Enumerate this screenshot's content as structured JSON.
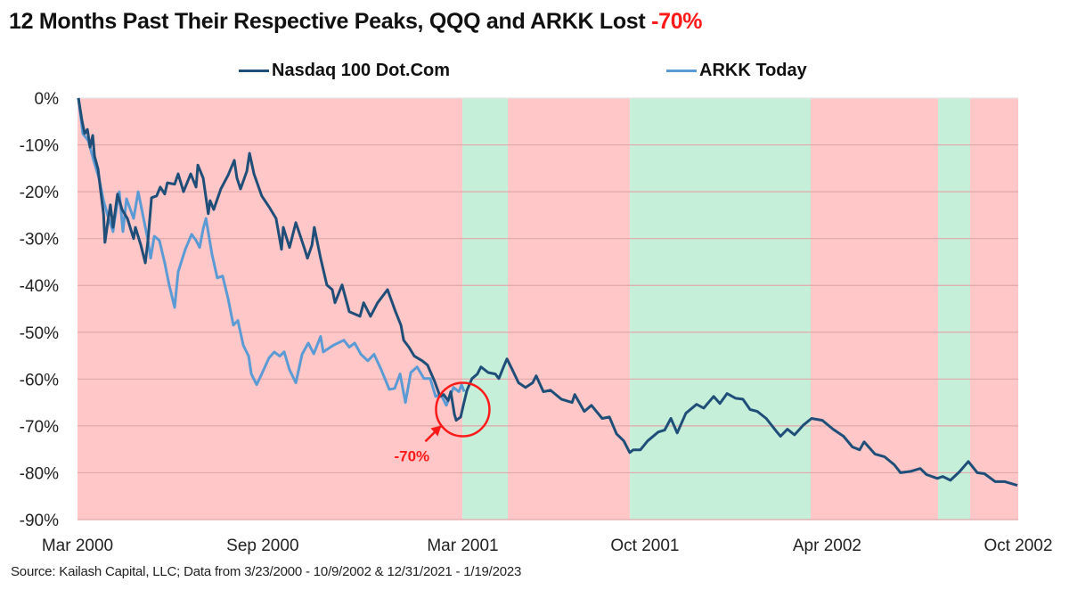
{
  "title": {
    "main": "12 Months Past Their Respective Peaks, QQQ and ARKK Lost ",
    "highlight": "-70%"
  },
  "source": "Source: Kailash Capital, LLC; Data from 3/23/2000 - 10/9/2002 & 12/31/2021 - 1/19/2023",
  "colors": {
    "nasdaq": "#1f4e79",
    "arkk": "#5b9bd5",
    "red_band": "#ffc7c7",
    "green_band": "#c6efda",
    "annotation": "#ff1a1a",
    "gridline": "#e0a8a8"
  },
  "chart_data": {
    "type": "line",
    "title": "12 Months Past Their Respective Peaks, QQQ and ARKK Lost -70%",
    "xlabel": "",
    "ylabel": "",
    "x_unit": "months since Mar 2000",
    "xlim": [
      0,
      31.5
    ],
    "ylim": [
      -90,
      0
    ],
    "grid": true,
    "legend_position": "top-center",
    "yticks": [
      0,
      -10,
      -20,
      -30,
      -40,
      -50,
      -60,
      -70,
      -80,
      -90
    ],
    "ytick_labels": [
      "0%",
      "-10%",
      "-20%",
      "-30%",
      "-40%",
      "-50%",
      "-60%",
      "-70%",
      "-80%",
      "-90%"
    ],
    "xticks": [
      {
        "x": 0,
        "label": "Mar 2000"
      },
      {
        "x": 6.2,
        "label": "Sep 2000"
      },
      {
        "x": 12.9,
        "label": "Mar 2001"
      },
      {
        "x": 19.0,
        "label": "Oct 2001"
      },
      {
        "x": 25.1,
        "label": "Apr 2002"
      },
      {
        "x": 31.5,
        "label": "Oct 2002"
      }
    ],
    "bands": [
      {
        "from": 0,
        "to": 12.89,
        "type": "red"
      },
      {
        "from": 12.89,
        "to": 14.41,
        "type": "green"
      },
      {
        "from": 14.41,
        "to": 18.5,
        "type": "red"
      },
      {
        "from": 18.5,
        "to": 24.55,
        "type": "green"
      },
      {
        "from": 24.55,
        "to": 28.82,
        "type": "red"
      },
      {
        "from": 28.82,
        "to": 29.89,
        "type": "green"
      },
      {
        "from": 29.89,
        "to": 31.5,
        "type": "red"
      }
    ],
    "annotation": {
      "label": "-70%",
      "x": 12.9,
      "y": -66.5,
      "label_x": 11.2,
      "label_y": -77.5
    },
    "series": [
      {
        "name": "Nasdaq 100 Dot.Com",
        "color_key": "nasdaq",
        "points": [
          [
            0.03,
            0
          ],
          [
            0.15,
            -4.8
          ],
          [
            0.24,
            -7.6
          ],
          [
            0.33,
            -6.7
          ],
          [
            0.42,
            -10.5
          ],
          [
            0.51,
            -8.0
          ],
          [
            0.57,
            -12.4
          ],
          [
            0.69,
            -15.2
          ],
          [
            0.78,
            -20.0
          ],
          [
            0.87,
            -24.7
          ],
          [
            0.92,
            -30.8
          ],
          [
            1.01,
            -26.6
          ],
          [
            1.1,
            -22.8
          ],
          [
            1.19,
            -27.6
          ],
          [
            1.34,
            -20.5
          ],
          [
            1.49,
            -23.8
          ],
          [
            1.67,
            -25.7
          ],
          [
            1.88,
            -30.0
          ],
          [
            1.94,
            -27.6
          ],
          [
            2.12,
            -31.4
          ],
          [
            2.27,
            -35.2
          ],
          [
            2.36,
            -30.4
          ],
          [
            2.48,
            -21.3
          ],
          [
            2.65,
            -20.9
          ],
          [
            2.77,
            -19.0
          ],
          [
            2.92,
            -20.5
          ],
          [
            3.01,
            -18.1
          ],
          [
            3.25,
            -18.4
          ],
          [
            3.37,
            -16.2
          ],
          [
            3.55,
            -20.0
          ],
          [
            3.79,
            -16.2
          ],
          [
            3.97,
            -19.0
          ],
          [
            4.03,
            -14.3
          ],
          [
            4.21,
            -17.1
          ],
          [
            4.38,
            -24.7
          ],
          [
            4.44,
            -21.9
          ],
          [
            4.56,
            -23.8
          ],
          [
            4.8,
            -19.4
          ],
          [
            5.04,
            -16.5
          ],
          [
            5.25,
            -13.3
          ],
          [
            5.34,
            -17.1
          ],
          [
            5.46,
            -19.4
          ],
          [
            5.67,
            -15.6
          ],
          [
            5.76,
            -11.8
          ],
          [
            5.91,
            -16.2
          ],
          [
            6.17,
            -20.9
          ],
          [
            6.41,
            -23.2
          ],
          [
            6.65,
            -25.7
          ],
          [
            6.83,
            -32.3
          ],
          [
            6.89,
            -27.6
          ],
          [
            7.1,
            -31.9
          ],
          [
            7.31,
            -26.6
          ],
          [
            7.61,
            -32.3
          ],
          [
            7.7,
            -34.2
          ],
          [
            7.85,
            -31.4
          ],
          [
            7.93,
            -27.6
          ],
          [
            8.14,
            -34.2
          ],
          [
            8.35,
            -39.9
          ],
          [
            8.53,
            -40.9
          ],
          [
            8.62,
            -43.7
          ],
          [
            8.86,
            -39.9
          ],
          [
            9.1,
            -45.6
          ],
          [
            9.46,
            -46.6
          ],
          [
            9.58,
            -43.7
          ],
          [
            9.81,
            -46.6
          ],
          [
            10.05,
            -43.7
          ],
          [
            10.38,
            -40.9
          ],
          [
            10.65,
            -45.6
          ],
          [
            10.83,
            -48.5
          ],
          [
            10.92,
            -51.7
          ],
          [
            11.1,
            -53.2
          ],
          [
            11.28,
            -55.1
          ],
          [
            11.54,
            -56.1
          ],
          [
            11.72,
            -57.0
          ],
          [
            11.96,
            -60.5
          ],
          [
            12.14,
            -63.7
          ],
          [
            12.26,
            -63.3
          ],
          [
            12.41,
            -64.6
          ],
          [
            12.5,
            -62.7
          ],
          [
            12.62,
            -67.5
          ],
          [
            12.68,
            -68.8
          ],
          [
            12.83,
            -68.1
          ],
          [
            12.92,
            -65.6
          ],
          [
            13.04,
            -62.4
          ],
          [
            13.21,
            -59.9
          ],
          [
            13.39,
            -58.9
          ],
          [
            13.51,
            -57.4
          ],
          [
            13.75,
            -58.6
          ],
          [
            13.99,
            -58.9
          ],
          [
            14.11,
            -59.9
          ],
          [
            14.29,
            -57.0
          ],
          [
            14.38,
            -55.7
          ],
          [
            14.56,
            -58.0
          ],
          [
            14.77,
            -60.8
          ],
          [
            15.0,
            -61.8
          ],
          [
            15.24,
            -60.8
          ],
          [
            15.36,
            -59.3
          ],
          [
            15.6,
            -62.7
          ],
          [
            15.84,
            -62.4
          ],
          [
            16.2,
            -64.3
          ],
          [
            16.56,
            -65.0
          ],
          [
            16.65,
            -63.3
          ],
          [
            16.97,
            -66.9
          ],
          [
            17.21,
            -65.6
          ],
          [
            17.57,
            -68.4
          ],
          [
            17.81,
            -68.1
          ],
          [
            18.05,
            -71.7
          ],
          [
            18.29,
            -73.2
          ],
          [
            18.49,
            -75.7
          ],
          [
            18.61,
            -75.1
          ],
          [
            18.85,
            -75.1
          ],
          [
            19.09,
            -73.2
          ],
          [
            19.45,
            -71.3
          ],
          [
            19.66,
            -70.9
          ],
          [
            19.87,
            -68.4
          ],
          [
            20.08,
            -71.5
          ],
          [
            20.37,
            -67.3
          ],
          [
            20.73,
            -65.4
          ],
          [
            20.97,
            -66.2
          ],
          [
            21.3,
            -63.7
          ],
          [
            21.51,
            -65.2
          ],
          [
            21.75,
            -63.1
          ],
          [
            22.04,
            -64.1
          ],
          [
            22.28,
            -64.3
          ],
          [
            22.52,
            -66.5
          ],
          [
            22.76,
            -66.9
          ],
          [
            23.06,
            -68.4
          ],
          [
            23.42,
            -71.3
          ],
          [
            23.54,
            -72.2
          ],
          [
            23.77,
            -70.7
          ],
          [
            24.01,
            -71.9
          ],
          [
            24.31,
            -69.8
          ],
          [
            24.58,
            -68.4
          ],
          [
            24.94,
            -68.8
          ],
          [
            25.3,
            -70.7
          ],
          [
            25.65,
            -72.2
          ],
          [
            25.95,
            -74.5
          ],
          [
            26.19,
            -75.1
          ],
          [
            26.34,
            -73.4
          ],
          [
            26.7,
            -76.0
          ],
          [
            27.03,
            -76.6
          ],
          [
            27.35,
            -78.3
          ],
          [
            27.56,
            -80.0
          ],
          [
            27.89,
            -79.7
          ],
          [
            28.22,
            -79.1
          ],
          [
            28.43,
            -80.4
          ],
          [
            28.79,
            -81.2
          ],
          [
            28.97,
            -80.8
          ],
          [
            29.23,
            -81.6
          ],
          [
            29.53,
            -79.8
          ],
          [
            29.83,
            -77.6
          ],
          [
            30.13,
            -80.0
          ],
          [
            30.37,
            -80.2
          ],
          [
            30.73,
            -81.9
          ],
          [
            31.05,
            -81.9
          ],
          [
            31.47,
            -82.7
          ]
        ]
      },
      {
        "name": "ARKK Today",
        "color_key": "arkk",
        "points": [
          [
            0.03,
            0
          ],
          [
            0.18,
            -7.6
          ],
          [
            0.36,
            -9.1
          ],
          [
            0.54,
            -13.3
          ],
          [
            0.72,
            -17.1
          ],
          [
            0.87,
            -21.9
          ],
          [
            1.04,
            -25.7
          ],
          [
            1.19,
            -28.5
          ],
          [
            1.25,
            -25.7
          ],
          [
            1.4,
            -20.0
          ],
          [
            1.52,
            -28.5
          ],
          [
            1.64,
            -21.5
          ],
          [
            1.88,
            -25.7
          ],
          [
            2.03,
            -20.0
          ],
          [
            2.18,
            -24.7
          ],
          [
            2.36,
            -30.4
          ],
          [
            2.45,
            -34.2
          ],
          [
            2.57,
            -29.5
          ],
          [
            2.74,
            -30.4
          ],
          [
            2.92,
            -35.2
          ],
          [
            3.07,
            -39.9
          ],
          [
            3.25,
            -44.7
          ],
          [
            3.37,
            -37.1
          ],
          [
            3.61,
            -32.3
          ],
          [
            3.82,
            -29.1
          ],
          [
            3.97,
            -30.4
          ],
          [
            4.09,
            -31.9
          ],
          [
            4.21,
            -27.9
          ],
          [
            4.3,
            -25.7
          ],
          [
            4.5,
            -33.3
          ],
          [
            4.68,
            -38.4
          ],
          [
            4.86,
            -38.0
          ],
          [
            5.04,
            -42.8
          ],
          [
            5.22,
            -48.5
          ],
          [
            5.37,
            -47.5
          ],
          [
            5.55,
            -52.8
          ],
          [
            5.73,
            -55.1
          ],
          [
            5.82,
            -58.9
          ],
          [
            6.0,
            -61.2
          ],
          [
            6.17,
            -58.9
          ],
          [
            6.41,
            -55.5
          ],
          [
            6.59,
            -54.2
          ],
          [
            6.77,
            -55.1
          ],
          [
            6.92,
            -54.2
          ],
          [
            7.1,
            -58.0
          ],
          [
            7.31,
            -60.8
          ],
          [
            7.52,
            -54.7
          ],
          [
            7.73,
            -52.3
          ],
          [
            7.91,
            -54.6
          ],
          [
            8.14,
            -50.9
          ],
          [
            8.23,
            -54.2
          ],
          [
            8.56,
            -52.8
          ],
          [
            8.92,
            -51.7
          ],
          [
            9.1,
            -53.2
          ],
          [
            9.28,
            -52.3
          ],
          [
            9.49,
            -54.7
          ],
          [
            9.72,
            -56.1
          ],
          [
            9.93,
            -54.7
          ],
          [
            10.17,
            -58.0
          ],
          [
            10.35,
            -60.8
          ],
          [
            10.44,
            -62.2
          ],
          [
            10.62,
            -62.0
          ],
          [
            10.8,
            -58.9
          ],
          [
            10.98,
            -65.0
          ],
          [
            11.16,
            -58.6
          ],
          [
            11.37,
            -57.4
          ],
          [
            11.6,
            -59.9
          ],
          [
            11.81,
            -59.9
          ],
          [
            11.99,
            -63.7
          ],
          [
            12.17,
            -63.3
          ],
          [
            12.35,
            -65.6
          ],
          [
            12.59,
            -61.8
          ],
          [
            12.77,
            -62.7
          ],
          [
            12.86,
            -61.2
          ],
          [
            12.95,
            -62.7
          ]
        ]
      }
    ]
  }
}
